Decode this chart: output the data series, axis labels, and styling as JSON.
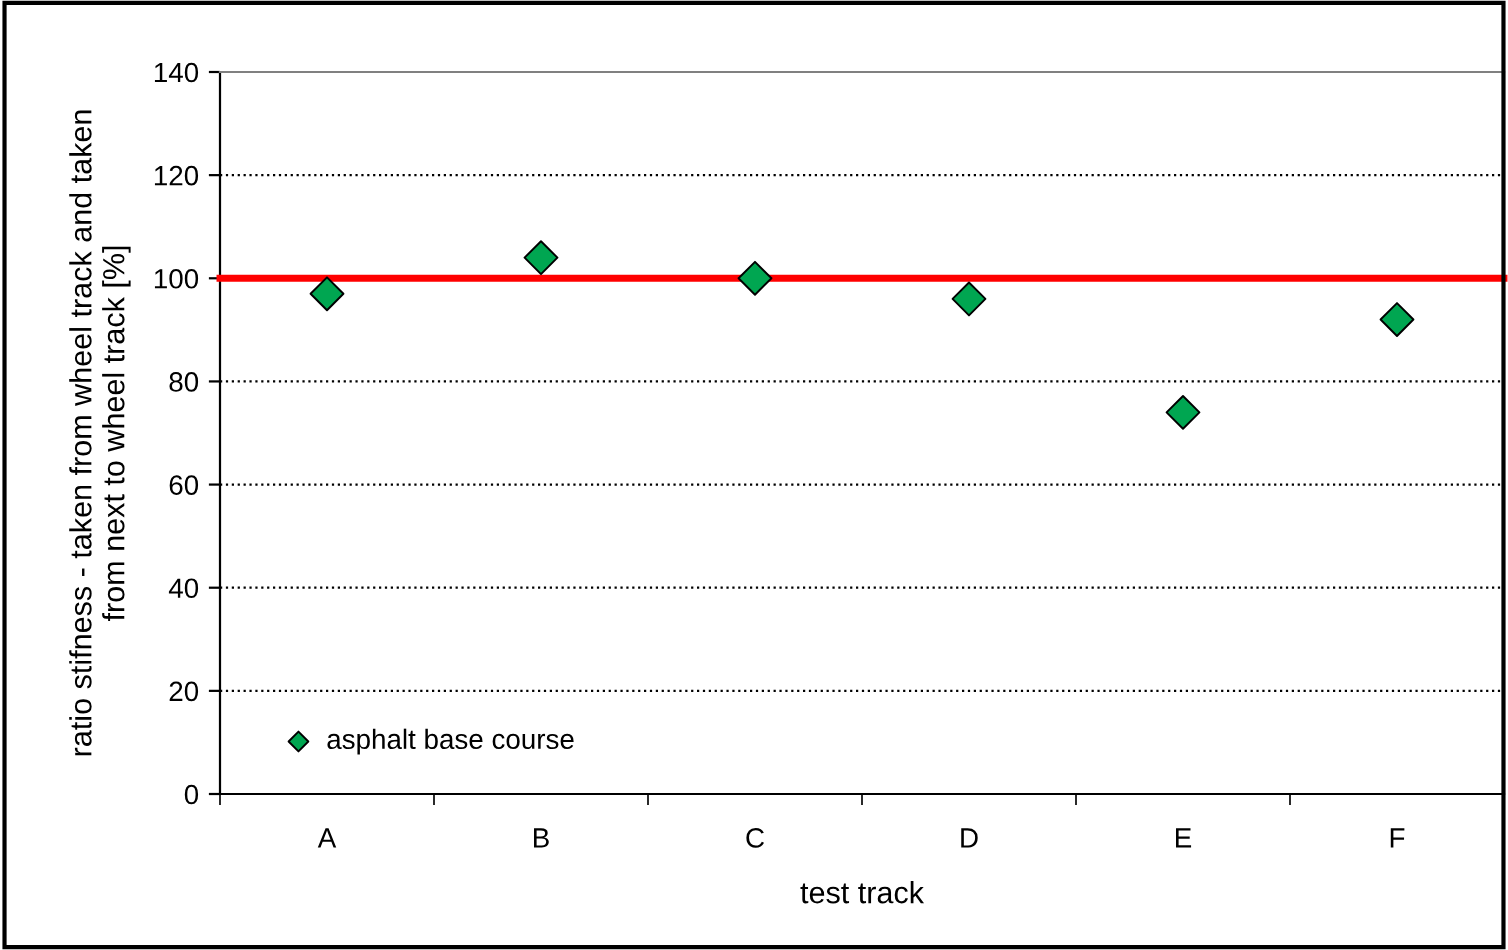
{
  "chart_data": {
    "type": "scatter",
    "xlabel": "test track",
    "ylabel": "ratio stifness - taken from wheel track and taken\nfrom next to wheel track [%]",
    "categories": [
      "A",
      "B",
      "C",
      "D",
      "E",
      "F"
    ],
    "series": [
      {
        "name": "asphalt base course",
        "color": "#00a651",
        "values": [
          97,
          104,
          100,
          96,
          74,
          92
        ]
      }
    ],
    "marker": "diamond",
    "ylim": [
      0,
      140
    ],
    "yticks": [
      0,
      20,
      40,
      60,
      80,
      100,
      120,
      140
    ],
    "grid": "y",
    "legend": "bottom left",
    "ref_lines": [
      {
        "axis": "y",
        "value": 100,
        "color": "#ff0000",
        "line_style": "solid"
      }
    ]
  }
}
